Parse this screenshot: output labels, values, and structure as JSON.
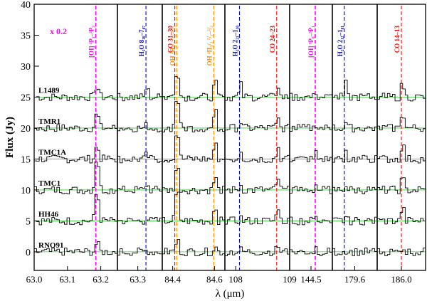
{
  "chart_data": {
    "type": "line",
    "title": "",
    "xlabel": "λ (μm)",
    "ylabel": "Flux (Jy)",
    "ylim": [
      -3,
      40
    ],
    "yticks": [
      0,
      5,
      10,
      15,
      20,
      25,
      30,
      35,
      40
    ],
    "grid": false,
    "scale_note": "x 0.2",
    "sources": [
      {
        "name": "L1489",
        "offset": 25
      },
      {
        "name": "TMR1",
        "offset": 20
      },
      {
        "name": "TMC1A",
        "offset": 15
      },
      {
        "name": "TMC1",
        "offset": 10
      },
      {
        "name": "HH46",
        "offset": 5
      },
      {
        "name": "RNO91",
        "offset": 0
      }
    ],
    "panels": [
      {
        "xlim": [
          63.0,
          63.25
        ],
        "ticks": [
          "63.0",
          "63.1",
          "63.2"
        ],
        "tick_values": [
          63.0,
          63.1,
          63.2
        ],
        "lines": [
          {
            "label": "[OI] ³P₁–³P₂",
            "x": 63.185,
            "color": "#ff00ff"
          }
        ],
        "peaks": [
          [
            2.0,
            2.5,
            2.2,
            6.0,
            5.2,
            1.5
          ]
        ]
      },
      {
        "xlim": [
          63.25,
          63.36
        ],
        "ticks": [
          "63.3"
        ],
        "tick_values": [
          63.3
        ],
        "lines": [
          {
            "label": "H₂O 8₁₈–7₀₇",
            "x": 63.32,
            "color": "#0000cc"
          }
        ],
        "peaks": [
          [
            3.0,
            0.8,
            1.2,
            1.8,
            1.0,
            0.5
          ]
        ]
      },
      {
        "xlim": [
          84.35,
          84.65
        ],
        "ticks": [
          "84.4",
          "84.6"
        ],
        "tick_values": [
          84.4,
          84.6
        ],
        "lines": [
          {
            "label": "CO 31–30",
            "x": 84.41,
            "color": "#ff0000"
          },
          {
            "label": "OH ²Π₃/₂ ⁷/₂–⁵/₂",
            "x": 84.42,
            "color": "#ff8800"
          },
          {
            "label": "OH ²Π₃/₂ ⁷/₂–⁵/₂",
            "x": 84.597,
            "color": "#ff8800"
          }
        ],
        "peaks": [
          [
            3.0,
            3.5,
            3.0,
            2.5,
            3.0,
            1.0
          ],
          [
            3.5,
            4.0,
            3.5,
            3.0,
            4.0,
            1.5
          ]
        ]
      },
      {
        "xlim": [
          107.8,
          109.0
        ],
        "ticks": [
          "108",
          "109"
        ],
        "tick_values": [
          108,
          109
        ],
        "lines": [
          {
            "label": "H₂O 2₂₁–1₁₀",
            "x": 108.07,
            "color": "#0000cc"
          },
          {
            "label": "CO 24–23",
            "x": 108.76,
            "color": "#ff0000"
          }
        ],
        "peaks": [
          [
            2.0,
            1.0,
            1.5,
            0.8,
            0.5,
            0.3
          ],
          [
            2.0,
            1.5,
            2.0,
            2.0,
            2.5,
            1.0
          ]
        ]
      },
      {
        "xlim": [
          144.4,
          144.6
        ],
        "ticks": [
          "144.5"
        ],
        "tick_values": [
          144.5
        ],
        "lines": [
          {
            "label": "[OI] ³P₀–³P₁",
            "x": 144.52,
            "color": "#ff00ff"
          }
        ],
        "peaks": [
          [
            1.0,
            0.8,
            1.2,
            1.0,
            1.5,
            0.8
          ]
        ]
      },
      {
        "xlim": [
          179.45,
          179.75
        ],
        "ticks": [
          "179.6"
        ],
        "tick_values": [
          179.6
        ],
        "lines": [
          {
            "label": "H₂O 2₁₂–1₀₁",
            "x": 179.53,
            "color": "#0000cc"
          }
        ],
        "peaks": [
          [
            2.5,
            1.0,
            1.5,
            1.0,
            0.8,
            0.3
          ]
        ]
      },
      {
        "xlim": [
          185.9,
          186.1
        ],
        "ticks": [
          "186.0"
        ],
        "tick_values": [
          186.0
        ],
        "lines": [
          {
            "label": "CO 14–13",
            "x": 186.0,
            "color": "#ff0000"
          }
        ],
        "peaks": [
          [
            4.0,
            5.0,
            4.5,
            3.5,
            4.0,
            1.5
          ]
        ]
      }
    ]
  }
}
